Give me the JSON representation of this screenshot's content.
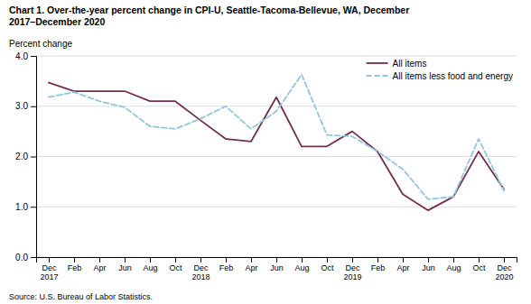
{
  "chart_data": {
    "type": "line",
    "title": "Chart 1. Over-the-year percent change in CPI-U, Seattle-Tacoma-Bellevue, WA, December\n2017–December 2020",
    "ylabel": "Percent change",
    "source": "Source: U.S. Bureau of Labor Statistics.",
    "categories": [
      "Dec\n2017",
      "Feb",
      "Apr",
      "Jun",
      "Aug",
      "Oct",
      "Dec\n2018",
      "Feb",
      "Apr",
      "Jun",
      "Aug",
      "Oct",
      "Dec\n2019",
      "Feb",
      "Apr",
      "Jun",
      "Aug",
      "Oct",
      "Dec\n2020"
    ],
    "series": [
      {
        "name": "All items",
        "color": "#722f4f",
        "line_style": "solid",
        "values": [
          3.47,
          3.3,
          3.3,
          3.3,
          3.1,
          3.1,
          2.72,
          2.35,
          2.3,
          3.18,
          2.2,
          2.2,
          2.5,
          2.1,
          1.25,
          0.93,
          1.2,
          2.1,
          1.35
        ]
      },
      {
        "name": "All items less food and energy",
        "color": "#92c5de",
        "line_style": "dashed",
        "values": [
          3.18,
          3.28,
          3.1,
          2.98,
          2.6,
          2.55,
          2.75,
          3.0,
          2.55,
          2.9,
          3.63,
          2.43,
          2.4,
          2.1,
          1.75,
          1.15,
          1.2,
          2.35,
          1.32
        ]
      }
    ],
    "ylim": [
      0.0,
      4.0
    ],
    "yticks": [
      {
        "value": 0.0,
        "label": "0.0"
      },
      {
        "value": 1.0,
        "label": "1.0"
      },
      {
        "value": 2.0,
        "label": "2.0"
      },
      {
        "value": 3.0,
        "label": "3.0"
      },
      {
        "value": 4.0,
        "label": "4.0"
      }
    ],
    "grid": true,
    "legend": "upper-right"
  }
}
